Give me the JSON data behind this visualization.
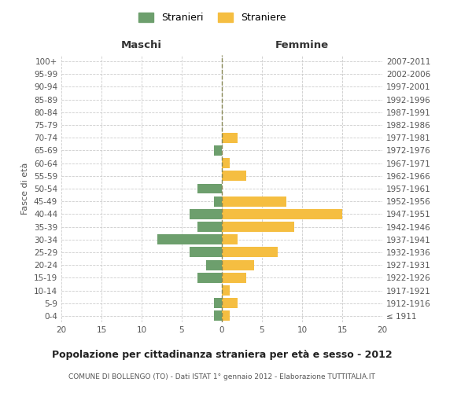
{
  "age_groups": [
    "100+",
    "95-99",
    "90-94",
    "85-89",
    "80-84",
    "75-79",
    "70-74",
    "65-69",
    "60-64",
    "55-59",
    "50-54",
    "45-49",
    "40-44",
    "35-39",
    "30-34",
    "25-29",
    "20-24",
    "15-19",
    "10-14",
    "5-9",
    "0-4"
  ],
  "birth_years": [
    "≤ 1911",
    "1912-1916",
    "1917-1921",
    "1922-1926",
    "1927-1931",
    "1932-1936",
    "1937-1941",
    "1942-1946",
    "1947-1951",
    "1952-1956",
    "1957-1961",
    "1962-1966",
    "1967-1971",
    "1972-1976",
    "1977-1981",
    "1982-1986",
    "1987-1991",
    "1992-1996",
    "1997-2001",
    "2002-2006",
    "2007-2011"
  ],
  "maschi": [
    0,
    0,
    0,
    0,
    0,
    0,
    0,
    1,
    0,
    0,
    3,
    1,
    4,
    3,
    8,
    4,
    2,
    3,
    0,
    1,
    1
  ],
  "femmine": [
    0,
    0,
    0,
    0,
    0,
    0,
    2,
    0,
    1,
    3,
    0,
    8,
    15,
    9,
    2,
    7,
    4,
    3,
    1,
    2,
    1
  ],
  "color_maschi": "#6d9f6d",
  "color_femmine": "#f5be41",
  "title": "Popolazione per cittadinanza straniera per età e sesso - 2012",
  "subtitle": "COMUNE DI BOLLENGO (TO) - Dati ISTAT 1° gennaio 2012 - Elaborazione TUTTITALIA.IT",
  "xlabel_left": "Maschi",
  "xlabel_right": "Femmine",
  "ylabel_left": "Fasce di età",
  "legend_maschi": "Stranieri",
  "legend_femmine": "Straniere",
  "xlim": 20,
  "background_color": "#ffffff",
  "grid_color": "#cccccc",
  "bar_height": 0.8,
  "dashed_line_color": "#888855"
}
